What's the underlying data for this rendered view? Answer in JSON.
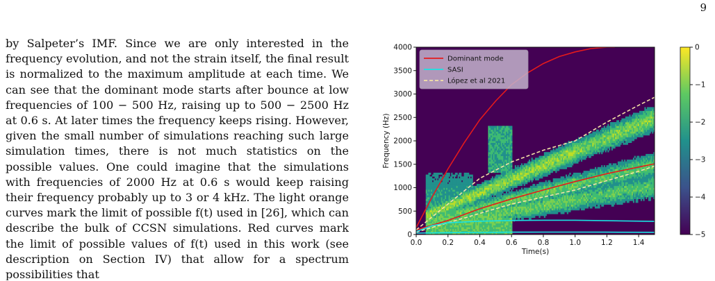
{
  "page_number": "9",
  "body_text": "by Salpeter’s IMF. Since we are only interested in the frequency evolution, and not the strain itself, the final result is normalized to the maximum amplitude at each time. We can see that the dominant mode starts after bounce at low frequencies of 100 − 500 Hz, raising up to 500 − 2500 Hz at 0.6 s. At later times the frequency keeps rising. However, given the small number of simulations reaching such large simulation times, there is not much statistics on the possible values. One could imagine that the simulations with frequencies of 2000 Hz at 0.6 s would keep raising their frequency probably up to 3 or 4 kHz. The light orange curves mark the limit of possible f(t) used in [26], which can describe the bulk of CCSN simulations. Red curves mark the limit of possible values of f(t) used in this work (see description on Section IV) that allow for a spectrum possibilities that",
  "chart_data": {
    "type": "heatmap",
    "xlabel": "Time(s)",
    "ylabel": "Frequency (Hz)",
    "xlim": [
      0.0,
      1.5
    ],
    "ylim": [
      0,
      4000
    ],
    "xticks": [
      "0.0",
      "0.2",
      "0.4",
      "0.6",
      "0.8",
      "1.0",
      "1.2",
      "1.4"
    ],
    "yticks": [
      "0",
      "500",
      "1000",
      "1500",
      "2000",
      "2500",
      "3000",
      "3500",
      "4000"
    ],
    "colorbar": {
      "ticks": [
        "0",
        "−1",
        "−2",
        "−3",
        "−4",
        "−5"
      ],
      "range": [
        -5,
        0
      ]
    },
    "legend": {
      "placement": "top-left",
      "entries": [
        {
          "label": "Dominant mode",
          "color": "#e41a1c",
          "style": "solid"
        },
        {
          "label": "SASI",
          "color": "#19e3e3",
          "style": "solid"
        },
        {
          "label": "López et al 2021",
          "color": "#f5e3a6",
          "style": "dashed"
        }
      ]
    },
    "series": [
      {
        "name": "Dominant mode",
        "color": "#e41a1c",
        "dashed": false,
        "x": [
          0.0,
          0.1,
          0.2,
          0.3,
          0.4,
          0.5,
          0.6,
          0.7,
          0.8,
          0.9,
          1.0,
          1.1,
          1.2,
          1.25
        ],
        "y": [
          150,
          800,
          1400,
          1950,
          2450,
          2850,
          3200,
          3450,
          3650,
          3800,
          3900,
          3970,
          4000,
          4000
        ]
      },
      {
        "name": "Dominant mode",
        "color": "#e41a1c",
        "dashed": false,
        "x": [
          0.0,
          0.2,
          0.4,
          0.6,
          0.8,
          1.0,
          1.2,
          1.4,
          1.5
        ],
        "y": [
          100,
          300,
          550,
          760,
          950,
          1130,
          1300,
          1440,
          1510
        ]
      },
      {
        "name": "López et al 2021",
        "color": "#f5e3a6",
        "dashed": true,
        "x": [
          0.0,
          0.2,
          0.4,
          0.6,
          0.8,
          1.0,
          1.2,
          1.4,
          1.5
        ],
        "y": [
          100,
          650,
          1200,
          1550,
          1800,
          2000,
          2400,
          2760,
          2930
        ]
      },
      {
        "name": "López et al 2021",
        "color": "#f5e3a6",
        "dashed": true,
        "x": [
          0.0,
          0.2,
          0.4,
          0.6,
          0.8,
          1.0,
          1.2,
          1.4,
          1.5
        ],
        "y": [
          50,
          250,
          450,
          650,
          800,
          950,
          1150,
          1350,
          1460
        ]
      },
      {
        "name": "SASI",
        "color": "#19e3e3",
        "dashed": false,
        "x": [
          0.0,
          0.1,
          0.2,
          0.4,
          0.6,
          0.8,
          1.0,
          1.2,
          1.5
        ],
        "y": [
          60,
          190,
          250,
          285,
          300,
          305,
          305,
          295,
          280
        ]
      },
      {
        "name": "SASI",
        "color": "#19e3e3",
        "dashed": false,
        "x": [
          0.0,
          0.2,
          0.4,
          0.6,
          0.8,
          1.0,
          1.2,
          1.5
        ],
        "y": [
          30,
          40,
          45,
          50,
          52,
          52,
          50,
          48
        ]
      }
    ]
  }
}
